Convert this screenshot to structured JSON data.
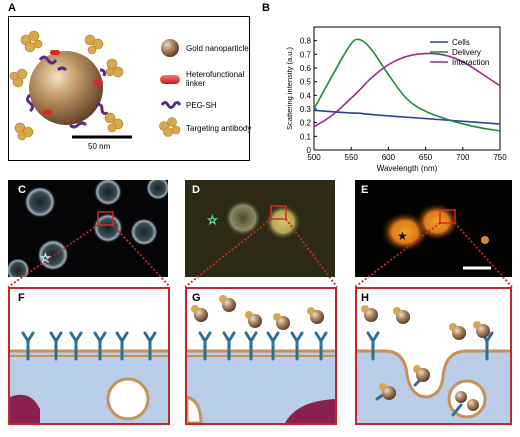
{
  "panel_a": {
    "letter": "A",
    "legend": [
      {
        "label": "Gold nanoparticle",
        "icon": "gold-nanoparticle-icon"
      },
      {
        "label": "Heterofunctional linker",
        "icon": "linker-icon"
      },
      {
        "label": "PEG-SH",
        "icon": "peg-sh-icon"
      },
      {
        "label": "Targeting antibody",
        "icon": "antibody-icon"
      }
    ],
    "scale_bar_label": "50 nm"
  },
  "panel_b": {
    "letter": "B"
  },
  "chart_data": {
    "type": "line",
    "title": "",
    "xlabel": "Wavelength (nm)",
    "ylabel": "Scattering intensity (a.u.)",
    "xlim": [
      500,
      750
    ],
    "ylim": [
      0,
      0.9
    ],
    "xticks": [
      "500",
      "550",
      "600",
      "650",
      "700",
      "750"
    ],
    "yticks": [
      "0",
      "0.1",
      "0.2",
      "0.3",
      "0.4",
      "0.5",
      "0.6",
      "0.7",
      "0.8"
    ],
    "legend_position": "top-right",
    "grid": false,
    "x": [
      500,
      525,
      550,
      560,
      575,
      600,
      625,
      650,
      675,
      700,
      725,
      750
    ],
    "series": [
      {
        "name": "Cells",
        "color": "#2b3f9e",
        "values": [
          0.29,
          0.28,
          0.27,
          0.27,
          0.26,
          0.25,
          0.24,
          0.23,
          0.22,
          0.21,
          0.2,
          0.19
        ]
      },
      {
        "name": "Delivery",
        "color": "#1e8a3c",
        "values": [
          0.3,
          0.55,
          0.79,
          0.82,
          0.76,
          0.55,
          0.36,
          0.28,
          0.23,
          0.19,
          0.16,
          0.14
        ]
      },
      {
        "name": "Interaction",
        "color": "#9c2a8c",
        "values": [
          0.17,
          0.25,
          0.38,
          0.43,
          0.52,
          0.63,
          0.69,
          0.71,
          0.7,
          0.65,
          0.56,
          0.47
        ]
      }
    ]
  },
  "panel_c": {
    "letter": "C"
  },
  "panel_d": {
    "letter": "D"
  },
  "panel_e": {
    "letter": "E"
  },
  "panel_f": {
    "letter": "F"
  },
  "panel_g": {
    "letter": "G"
  },
  "panel_h": {
    "letter": "H"
  },
  "colors": {
    "gold": "#b08a55",
    "linker": "#d42a2a",
    "peg": "#5a2d82",
    "antibody": "#d8a84a",
    "membrane": "#c8905a",
    "receptor": "#2f6f8f",
    "cytoplasm": "#b9cde8",
    "highlight_box": "#c0282e"
  }
}
